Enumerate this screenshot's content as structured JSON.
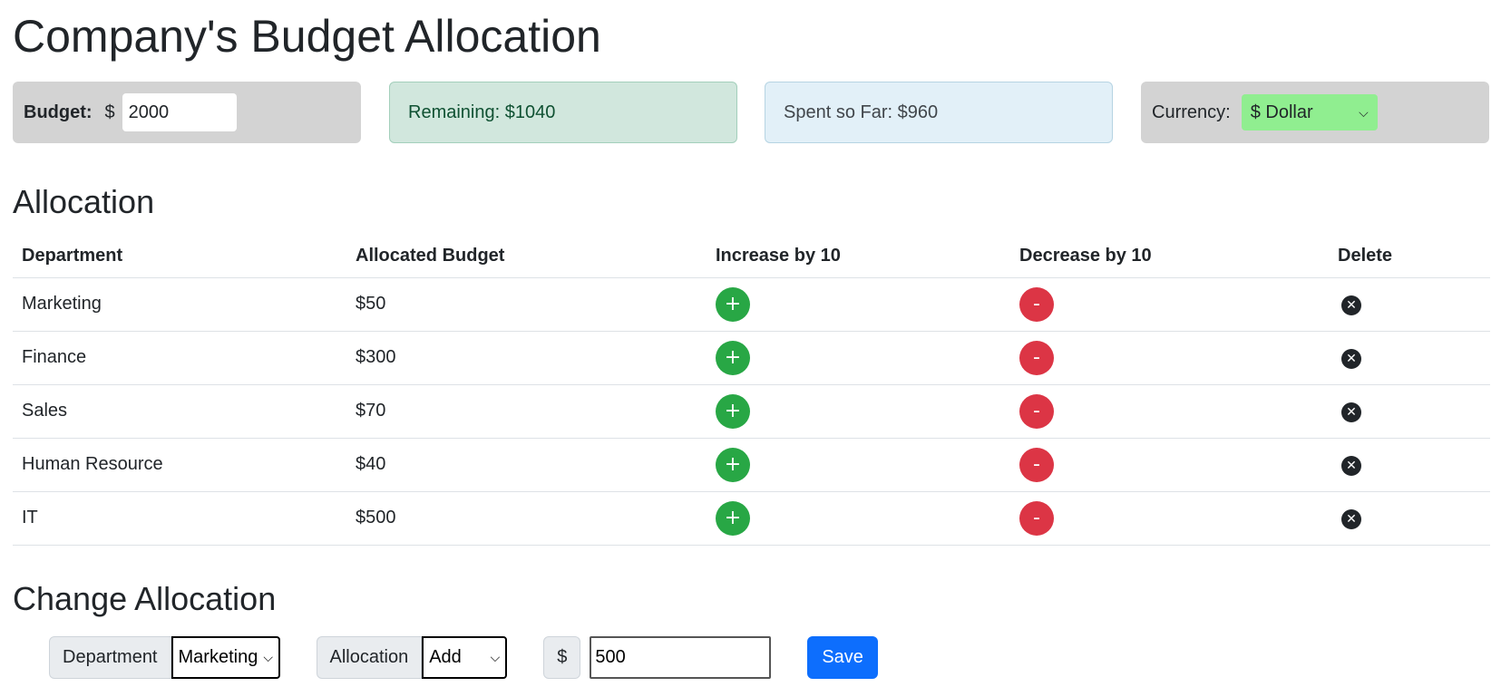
{
  "page_title": "Company's Budget Allocation",
  "summary": {
    "budget_label": "Budget:",
    "budget_currency_sign": "$",
    "budget_value": "2000",
    "remaining_text": "Remaining: $1040",
    "spent_text": "Spent so Far: $960",
    "currency_label": "Currency:",
    "currency_selected": "$ Dollar"
  },
  "allocation": {
    "title": "Allocation",
    "columns": [
      "Department",
      "Allocated Budget",
      "Increase by 10",
      "Decrease by 10",
      "Delete"
    ],
    "rows": [
      {
        "department": "Marketing",
        "budget": "$50"
      },
      {
        "department": "Finance",
        "budget": "$300"
      },
      {
        "department": "Sales",
        "budget": "$70"
      },
      {
        "department": "Human Resource",
        "budget": "$40"
      },
      {
        "department": "IT",
        "budget": "$500"
      }
    ],
    "increase_label": "+",
    "decrease_label": "-"
  },
  "change_allocation": {
    "title": "Change Allocation",
    "department_label": "Department",
    "department_selected": "Marketing",
    "allocation_label": "Allocation",
    "allocation_selected": "Add",
    "currency_sign": "$",
    "amount_value": "500",
    "save_label": "Save"
  },
  "colors": {
    "increase": "#28a745",
    "decrease": "#dc3545",
    "save": "#0d6efd",
    "currency_select": "#90ee90"
  }
}
